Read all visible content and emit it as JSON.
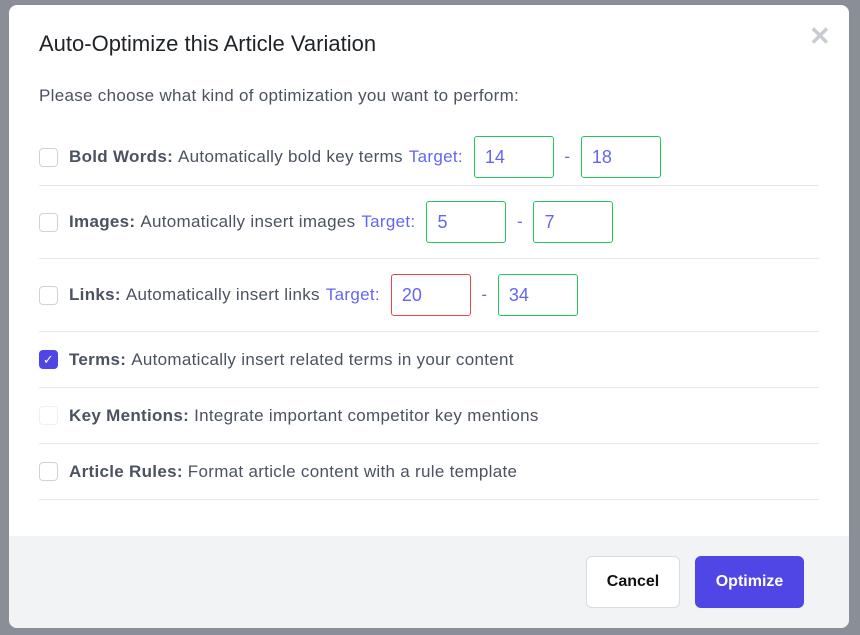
{
  "modal": {
    "title": "Auto-Optimize this Article Variation",
    "close_icon": "close-icon",
    "intro": "Please choose what kind of optimization you want to perform:"
  },
  "options": [
    {
      "label": "Bold Words:",
      "desc": "Automatically bold key terms",
      "target_label": "Target:",
      "min": "14",
      "max": "18",
      "checked": false
    },
    {
      "label": "Images:",
      "desc": "Automatically insert images",
      "target_label": "Target:",
      "min": "5",
      "max": "7",
      "checked": false
    },
    {
      "label": "Links:",
      "desc": "Automatically insert links",
      "target_label": "Target:",
      "min": "20",
      "max": "34",
      "checked": false,
      "min_invalid": true
    },
    {
      "label": "Terms:",
      "desc": "Automatically insert related terms in your content",
      "checked": true
    },
    {
      "label": "Key Mentions:",
      "desc": "Integrate important competitor key mentions",
      "checked": false,
      "disabled": true
    },
    {
      "label": "Article Rules:",
      "desc": "Format article content with a rule template",
      "checked": false
    }
  ],
  "separator": "-",
  "footer": {
    "cancel": "Cancel",
    "optimize": "Optimize"
  },
  "colors": {
    "accent": "#4f46e5",
    "valid": "#22c55e",
    "invalid": "#ef4444"
  }
}
